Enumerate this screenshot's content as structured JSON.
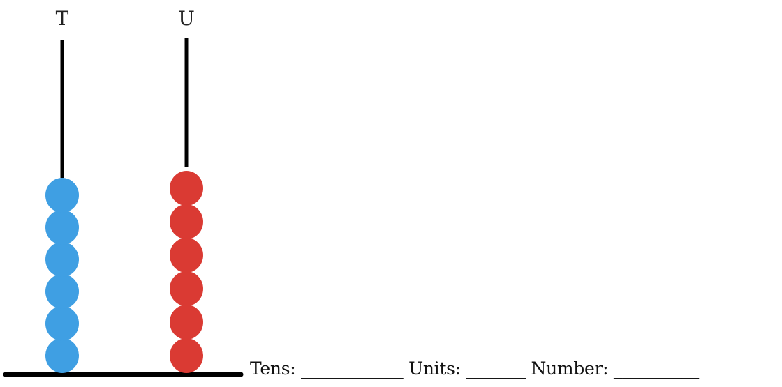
{
  "columns": [
    {
      "label": "T",
      "bead_count": 6,
      "bead_color": "#3f9fe3"
    },
    {
      "label": "U",
      "bead_count": 6,
      "bead_color": "#da3a33"
    }
  ],
  "rod_color": "#000000",
  "worksheet": {
    "tens_label": "Tens:",
    "tens_blank": "____________",
    "units_label": "Units:",
    "units_blank": "_______",
    "number_label": "Number:",
    "number_blank": "__________"
  }
}
